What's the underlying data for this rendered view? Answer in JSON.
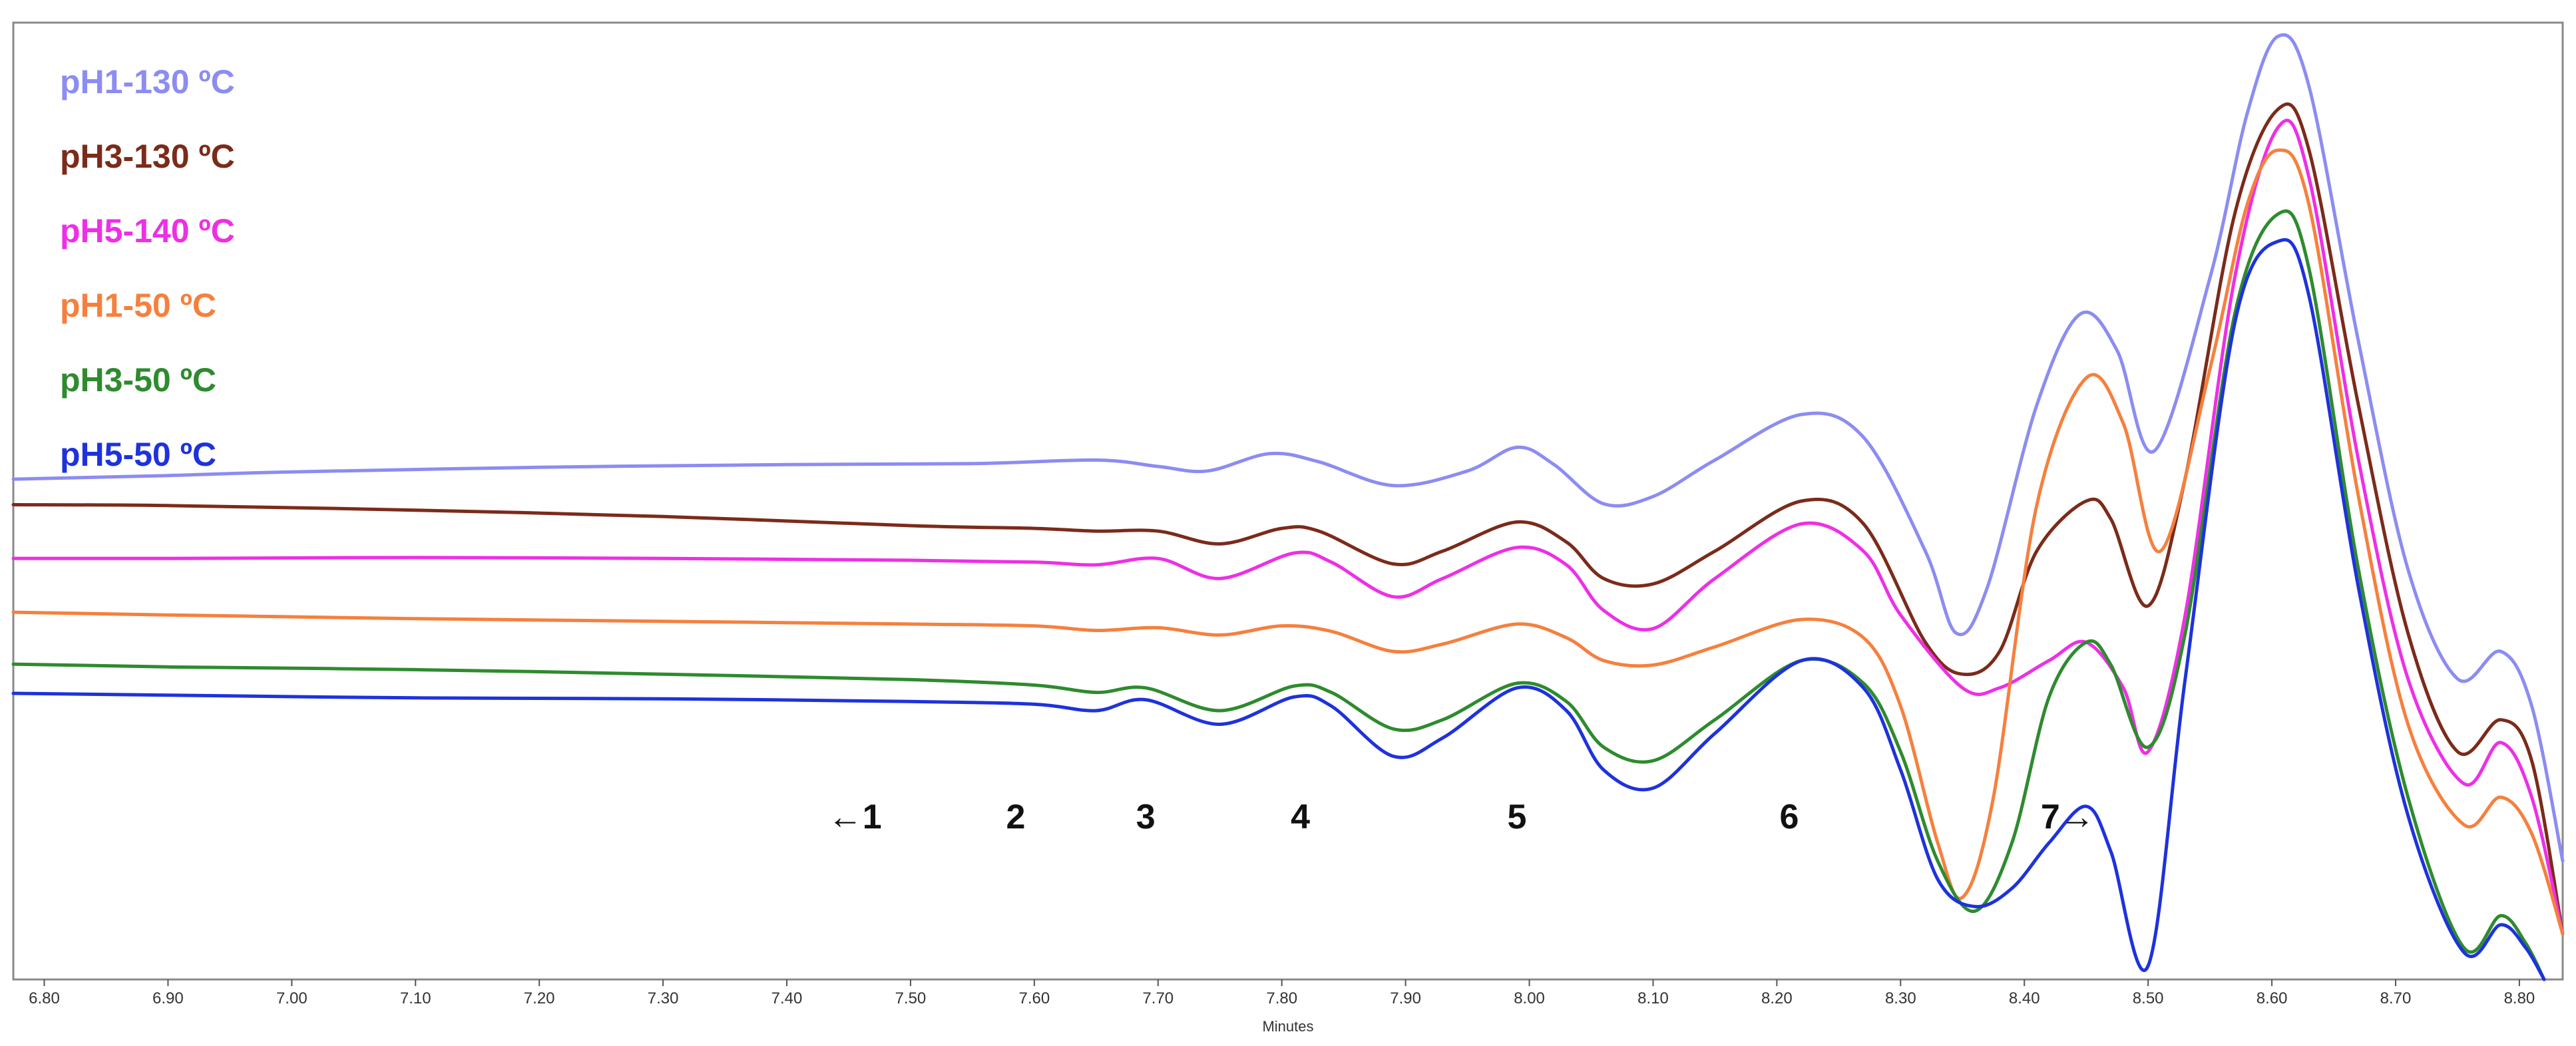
{
  "chart_data": {
    "type": "line",
    "xlabel": "Minutes",
    "ylabel": "",
    "xlim": [
      6.775,
      8.835
    ],
    "ylim": [
      -0.05,
      1.0
    ],
    "x_ticks": [
      "6.80",
      "6.90",
      "7.00",
      "7.10",
      "7.20",
      "7.30",
      "7.40",
      "7.50",
      "7.60",
      "7.70",
      "7.80",
      "7.90",
      "8.00",
      "8.10",
      "8.20",
      "8.30",
      "8.40",
      "8.50",
      "8.60",
      "8.70",
      "8.80"
    ],
    "legend_position": "top-left",
    "grid": false,
    "annotations": [
      {
        "text": "←1",
        "x": 7.455
      },
      {
        "text": "2",
        "x": 7.585
      },
      {
        "text": "3",
        "x": 7.69
      },
      {
        "text": "4",
        "x": 7.815
      },
      {
        "text": "5",
        "x": 7.99
      },
      {
        "text": "6",
        "x": 8.21
      },
      {
        "text": "7→",
        "x": 8.435
      }
    ],
    "series": [
      {
        "name": "pH1-130 ºC",
        "color": "#8c8cf2",
        "points": [
          [
            6.775,
            0.499
          ],
          [
            6.9,
            0.503
          ],
          [
            7.0,
            0.507
          ],
          [
            7.2,
            0.512
          ],
          [
            7.4,
            0.515
          ],
          [
            7.55,
            0.516
          ],
          [
            7.65,
            0.52
          ],
          [
            7.7,
            0.513
          ],
          [
            7.74,
            0.508
          ],
          [
            7.79,
            0.527
          ],
          [
            7.83,
            0.518
          ],
          [
            7.89,
            0.492
          ],
          [
            7.95,
            0.508
          ],
          [
            7.99,
            0.534
          ],
          [
            8.02,
            0.515
          ],
          [
            8.06,
            0.472
          ],
          [
            8.1,
            0.48
          ],
          [
            8.15,
            0.52
          ],
          [
            8.22,
            0.57
          ],
          [
            8.27,
            0.545
          ],
          [
            8.32,
            0.42
          ],
          [
            8.345,
            0.33
          ],
          [
            8.37,
            0.38
          ],
          [
            8.41,
            0.58
          ],
          [
            8.445,
            0.68
          ],
          [
            8.475,
            0.64
          ],
          [
            8.505,
            0.53
          ],
          [
            8.55,
            0.72
          ],
          [
            8.58,
            0.9
          ],
          [
            8.605,
            0.985
          ],
          [
            8.63,
            0.93
          ],
          [
            8.67,
            0.65
          ],
          [
            8.71,
            0.4
          ],
          [
            8.75,
            0.28
          ],
          [
            8.785,
            0.31
          ],
          [
            8.81,
            0.25
          ],
          [
            8.835,
            0.08
          ]
        ]
      },
      {
        "name": "pH3-130 ºC",
        "color": "#7b2b1a",
        "points": [
          [
            6.775,
            0.471
          ],
          [
            6.9,
            0.47
          ],
          [
            7.1,
            0.465
          ],
          [
            7.3,
            0.458
          ],
          [
            7.5,
            0.448
          ],
          [
            7.6,
            0.445
          ],
          [
            7.65,
            0.442
          ],
          [
            7.7,
            0.442
          ],
          [
            7.75,
            0.428
          ],
          [
            7.8,
            0.445
          ],
          [
            7.83,
            0.442
          ],
          [
            7.89,
            0.406
          ],
          [
            7.93,
            0.42
          ],
          [
            7.99,
            0.452
          ],
          [
            8.03,
            0.43
          ],
          [
            8.06,
            0.39
          ],
          [
            8.1,
            0.384
          ],
          [
            8.15,
            0.42
          ],
          [
            8.22,
            0.475
          ],
          [
            8.27,
            0.45
          ],
          [
            8.32,
            0.32
          ],
          [
            8.35,
            0.285
          ],
          [
            8.38,
            0.31
          ],
          [
            8.41,
            0.42
          ],
          [
            8.45,
            0.475
          ],
          [
            8.47,
            0.455
          ],
          [
            8.5,
            0.36
          ],
          [
            8.53,
            0.5
          ],
          [
            8.57,
            0.79
          ],
          [
            8.605,
            0.905
          ],
          [
            8.63,
            0.86
          ],
          [
            8.67,
            0.58
          ],
          [
            8.71,
            0.33
          ],
          [
            8.75,
            0.2
          ],
          [
            8.785,
            0.235
          ],
          [
            8.81,
            0.19
          ],
          [
            8.835,
            0.0
          ]
        ]
      },
      {
        "name": "pH5-140 ºC",
        "color": "#ee2fe6",
        "points": [
          [
            6.775,
            0.412
          ],
          [
            6.9,
            0.412
          ],
          [
            7.1,
            0.413
          ],
          [
            7.3,
            0.412
          ],
          [
            7.5,
            0.41
          ],
          [
            7.6,
            0.408
          ],
          [
            7.65,
            0.405
          ],
          [
            7.7,
            0.412
          ],
          [
            7.75,
            0.39
          ],
          [
            7.81,
            0.418
          ],
          [
            7.84,
            0.408
          ],
          [
            7.89,
            0.37
          ],
          [
            7.93,
            0.39
          ],
          [
            7.99,
            0.424
          ],
          [
            8.03,
            0.405
          ],
          [
            8.06,
            0.355
          ],
          [
            8.1,
            0.335
          ],
          [
            8.15,
            0.39
          ],
          [
            8.22,
            0.45
          ],
          [
            8.27,
            0.42
          ],
          [
            8.3,
            0.35
          ],
          [
            8.35,
            0.27
          ],
          [
            8.38,
            0.27
          ],
          [
            8.42,
            0.3
          ],
          [
            8.45,
            0.32
          ],
          [
            8.48,
            0.27
          ],
          [
            8.5,
            0.2
          ],
          [
            8.53,
            0.35
          ],
          [
            8.57,
            0.72
          ],
          [
            8.605,
            0.885
          ],
          [
            8.63,
            0.83
          ],
          [
            8.67,
            0.52
          ],
          [
            8.71,
            0.28
          ],
          [
            8.755,
            0.165
          ],
          [
            8.785,
            0.21
          ],
          [
            8.81,
            0.15
          ],
          [
            8.835,
            0.0
          ]
        ]
      },
      {
        "name": "pH1-50 ºC",
        "color": "#f5803e",
        "points": [
          [
            6.775,
            0.353
          ],
          [
            6.9,
            0.35
          ],
          [
            7.1,
            0.346
          ],
          [
            7.3,
            0.343
          ],
          [
            7.5,
            0.34
          ],
          [
            7.6,
            0.338
          ],
          [
            7.65,
            0.333
          ],
          [
            7.7,
            0.336
          ],
          [
            7.75,
            0.328
          ],
          [
            7.8,
            0.338
          ],
          [
            7.84,
            0.332
          ],
          [
            7.89,
            0.31
          ],
          [
            7.93,
            0.318
          ],
          [
            7.99,
            0.34
          ],
          [
            8.03,
            0.325
          ],
          [
            8.06,
            0.3
          ],
          [
            8.1,
            0.295
          ],
          [
            8.15,
            0.315
          ],
          [
            8.22,
            0.345
          ],
          [
            8.27,
            0.325
          ],
          [
            8.3,
            0.25
          ],
          [
            8.33,
            0.1
          ],
          [
            8.35,
            0.04
          ],
          [
            8.375,
            0.15
          ],
          [
            8.41,
            0.47
          ],
          [
            8.45,
            0.61
          ],
          [
            8.48,
            0.56
          ],
          [
            8.51,
            0.42
          ],
          [
            8.55,
            0.62
          ],
          [
            8.58,
            0.8
          ],
          [
            8.605,
            0.86
          ],
          [
            8.63,
            0.8
          ],
          [
            8.67,
            0.48
          ],
          [
            8.71,
            0.23
          ],
          [
            8.755,
            0.12
          ],
          [
            8.785,
            0.15
          ],
          [
            8.81,
            0.11
          ],
          [
            8.835,
            0.0
          ]
        ]
      },
      {
        "name": "pH3-50 ºC",
        "color": "#2e8b2e",
        "points": [
          [
            6.775,
            0.296
          ],
          [
            6.9,
            0.293
          ],
          [
            7.1,
            0.29
          ],
          [
            7.3,
            0.285
          ],
          [
            7.5,
            0.279
          ],
          [
            7.6,
            0.273
          ],
          [
            7.65,
            0.265
          ],
          [
            7.69,
            0.27
          ],
          [
            7.75,
            0.245
          ],
          [
            7.81,
            0.272
          ],
          [
            7.84,
            0.265
          ],
          [
            7.89,
            0.225
          ],
          [
            7.93,
            0.235
          ],
          [
            7.99,
            0.275
          ],
          [
            8.03,
            0.255
          ],
          [
            8.06,
            0.205
          ],
          [
            8.1,
            0.19
          ],
          [
            8.15,
            0.235
          ],
          [
            8.22,
            0.3
          ],
          [
            8.27,
            0.275
          ],
          [
            8.3,
            0.2
          ],
          [
            8.33,
            0.08
          ],
          [
            8.36,
            0.025
          ],
          [
            8.39,
            0.1
          ],
          [
            8.42,
            0.26
          ],
          [
            8.45,
            0.32
          ],
          [
            8.47,
            0.295
          ],
          [
            8.5,
            0.205
          ],
          [
            8.53,
            0.33
          ],
          [
            8.57,
            0.68
          ],
          [
            8.605,
            0.79
          ],
          [
            8.63,
            0.73
          ],
          [
            8.67,
            0.4
          ],
          [
            8.71,
            0.15
          ],
          [
            8.755,
            -0.015
          ],
          [
            8.785,
            0.02
          ],
          [
            8.805,
            -0.01
          ],
          [
            8.82,
            -0.05
          ]
        ]
      },
      {
        "name": "pH5-50 ºC",
        "color": "#1e32dc",
        "points": [
          [
            6.775,
            0.264
          ],
          [
            6.9,
            0.262
          ],
          [
            7.1,
            0.259
          ],
          [
            7.3,
            0.258
          ],
          [
            7.5,
            0.255
          ],
          [
            7.6,
            0.252
          ],
          [
            7.65,
            0.245
          ],
          [
            7.69,
            0.257
          ],
          [
            7.75,
            0.23
          ],
          [
            7.81,
            0.26
          ],
          [
            7.84,
            0.25
          ],
          [
            7.89,
            0.195
          ],
          [
            7.93,
            0.215
          ],
          [
            7.99,
            0.27
          ],
          [
            8.03,
            0.245
          ],
          [
            8.06,
            0.18
          ],
          [
            8.1,
            0.16
          ],
          [
            8.15,
            0.22
          ],
          [
            8.22,
            0.3
          ],
          [
            8.27,
            0.27
          ],
          [
            8.3,
            0.18
          ],
          [
            8.33,
            0.06
          ],
          [
            8.36,
            0.03
          ],
          [
            8.39,
            0.05
          ],
          [
            8.42,
            0.1
          ],
          [
            8.45,
            0.14
          ],
          [
            8.47,
            0.09
          ],
          [
            8.5,
            -0.035
          ],
          [
            8.53,
            0.28
          ],
          [
            8.57,
            0.67
          ],
          [
            8.605,
            0.76
          ],
          [
            8.63,
            0.7
          ],
          [
            8.67,
            0.38
          ],
          [
            8.71,
            0.13
          ],
          [
            8.755,
            -0.02
          ],
          [
            8.785,
            0.01
          ],
          [
            8.805,
            -0.015
          ],
          [
            8.82,
            -0.05
          ]
        ]
      }
    ]
  }
}
